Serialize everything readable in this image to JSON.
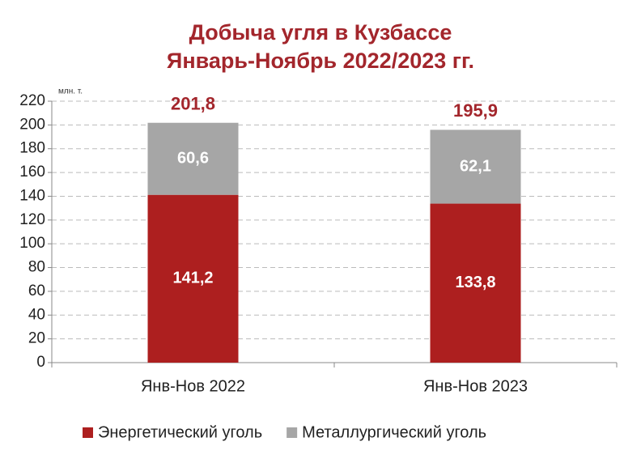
{
  "chart_data": {
    "type": "stacked_bar",
    "title": "Добыча угля в Кузбассе",
    "subtitle": "Январь-Ноябрь 2022/2023 гг.",
    "y_label": "млн. т.",
    "categories": [
      "Янв-Нов 2022",
      "Янв-Нов 2023"
    ],
    "series": [
      {
        "name": "Энергетический уголь",
        "color": "#ad1f1f",
        "values": [
          141.2,
          133.8
        ],
        "value_labels": [
          "141,2",
          "133,8"
        ]
      },
      {
        "name": "Металлургический уголь",
        "color": "#a6a6a6",
        "values": [
          60.6,
          62.1
        ],
        "value_labels": [
          "60,6",
          "62,1"
        ]
      }
    ],
    "totals": [
      201.8,
      195.9
    ],
    "total_labels": [
      "201,8",
      "195,9"
    ],
    "ylim": [
      0,
      220
    ],
    "yticks": [
      0,
      20,
      40,
      60,
      80,
      100,
      120,
      140,
      160,
      180,
      200,
      220
    ],
    "grid": true
  }
}
